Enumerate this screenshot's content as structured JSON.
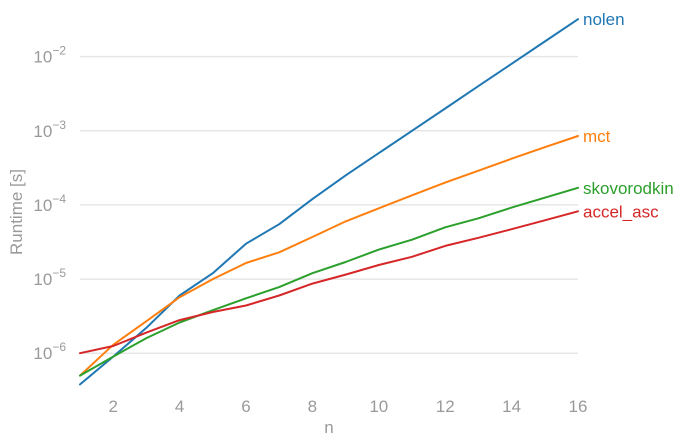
{
  "chart_data": {
    "type": "line",
    "xlabel": "n",
    "ylabel": "Runtime [s]",
    "y_scale": "log",
    "xlim": [
      1,
      16
    ],
    "ylim": [
      3e-07,
      0.04
    ],
    "grid": true,
    "legend_placement": "inline-right",
    "x_ticks": [
      2,
      4,
      6,
      8,
      10,
      12,
      14,
      16
    ],
    "x_tick_labels": [
      "2",
      "4",
      "6",
      "8",
      "10",
      "12",
      "14",
      "16"
    ],
    "y_ticks": [
      1e-06,
      1e-05,
      0.0001,
      0.001,
      0.01
    ],
    "y_tick_labels": [
      {
        "base": "10",
        "exp": "−6"
      },
      {
        "base": "10",
        "exp": "−5"
      },
      {
        "base": "10",
        "exp": "−4"
      },
      {
        "base": "10",
        "exp": "−3"
      },
      {
        "base": "10",
        "exp": "−2"
      }
    ],
    "x": [
      1,
      2,
      3,
      4,
      5,
      6,
      7,
      8,
      9,
      10,
      11,
      12,
      13,
      14,
      15,
      16
    ],
    "series": [
      {
        "name": "nolen",
        "color": "#1f77b4",
        "values": [
          3.8e-07,
          9e-07,
          2.2e-06,
          6e-06,
          1.2e-05,
          3e-05,
          5.5e-05,
          0.00012,
          0.00025,
          0.0005,
          0.001,
          0.002,
          0.004,
          0.008,
          0.016,
          0.032
        ]
      },
      {
        "name": "mct",
        "color": "#ff7f0e",
        "values": [
          5e-07,
          1.3e-06,
          2.7e-06,
          5.7e-06,
          1e-05,
          1.65e-05,
          2.3e-05,
          3.7e-05,
          6e-05,
          9e-05,
          0.000135,
          0.0002,
          0.00029,
          0.00042,
          0.0006,
          0.00085
        ]
      },
      {
        "name": "skovorodkin",
        "color": "#2ca02c",
        "values": [
          5e-07,
          9e-07,
          1.6e-06,
          2.6e-06,
          3.8e-06,
          5.5e-06,
          7.8e-06,
          1.2e-05,
          1.7e-05,
          2.5e-05,
          3.4e-05,
          5e-05,
          6.6e-05,
          9.2e-05,
          0.000125,
          0.00017
        ]
      },
      {
        "name": "accel_asc",
        "color": "#d62728",
        "values": [
          1e-06,
          1.25e-06,
          1.9e-06,
          2.8e-06,
          3.6e-06,
          4.4e-06,
          6e-06,
          8.7e-06,
          1.15e-05,
          1.55e-05,
          2e-05,
          2.8e-05,
          3.6e-05,
          4.7e-05,
          6.2e-05,
          8.2e-05
        ]
      }
    ]
  }
}
